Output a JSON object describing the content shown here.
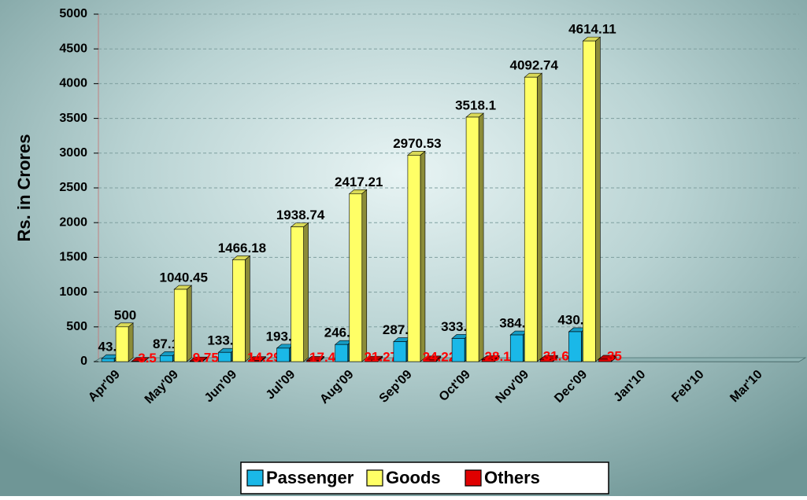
{
  "chart_data": {
    "type": "bar3d",
    "y_label": "Rs. in Crores",
    "categories": [
      "Apr'09",
      "May'09",
      "Jun'09",
      "Jul'09",
      "Aug'09",
      "Sep'09",
      "Oct'09",
      "Nov'09",
      "Dec'09",
      "Jan'10",
      "Feb'10",
      "Mar'10"
    ],
    "series": [
      {
        "name": "Passenger",
        "color": "#1ab8e8",
        "label_color": "#000000",
        "values": [
          43.5,
          87.12,
          133.28,
          193.82,
          246.69,
          287.89,
          333.98,
          384.16,
          430.24,
          null,
          null,
          null
        ]
      },
      {
        "name": "Goods",
        "color": "#ffff66",
        "label_color": "#000000",
        "values": [
          500,
          1040.45,
          1466.18,
          1938.74,
          2417.21,
          2970.53,
          3518.1,
          4092.74,
          4614.11,
          null,
          null,
          null
        ]
      },
      {
        "name": "Others",
        "color": "#e00000",
        "label_color": "#ff0000",
        "values": [
          3.5,
          9.75,
          14.29,
          17.4,
          21.27,
          24.22,
          28.1,
          31.6,
          35,
          null,
          null,
          null
        ]
      }
    ],
    "ylim": [
      0,
      5000
    ],
    "yticks": [
      0,
      500,
      1000,
      1500,
      2000,
      2500,
      3000,
      3500,
      4000,
      4500,
      5000
    ],
    "grid": true,
    "legend": "bottom"
  }
}
